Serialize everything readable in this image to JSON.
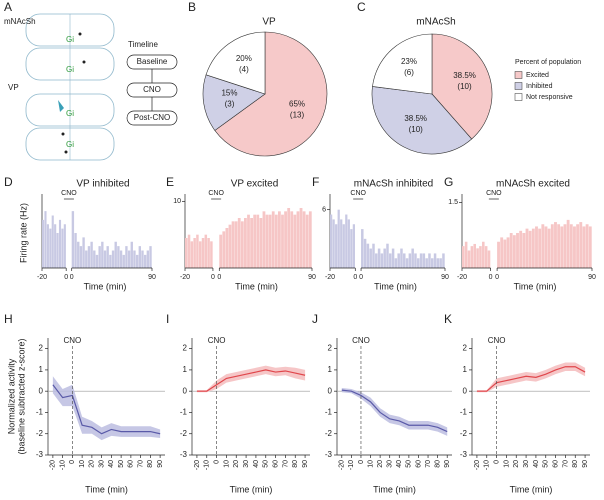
{
  "panel_labels": [
    "A",
    "B",
    "C",
    "D",
    "E",
    "F",
    "G",
    "H",
    "I",
    "J",
    "K"
  ],
  "diagram": {
    "regions": [
      "mNAcSh",
      "VP"
    ],
    "virus": "Gi",
    "timeline_title": "Timeline",
    "timeline_steps": [
      "Baseline",
      "CNO",
      "Post-CNO"
    ]
  },
  "chart_data": [
    {
      "type": "pie",
      "title": "VP",
      "values": [
        65,
        15,
        20
      ],
      "value_labels": [
        "65%",
        "15%",
        "20%"
      ],
      "counts": [
        13,
        3,
        4
      ],
      "count_labels": [
        "(13)",
        "(3)",
        "(4)"
      ],
      "colors": [
        "#f6c9c9",
        "#cfd0e6",
        "#ffffff"
      ]
    },
    {
      "type": "pie",
      "title": "mNAcSh",
      "values": [
        38.5,
        38.5,
        23
      ],
      "value_labels": [
        "38.5%",
        "38.5%",
        "23%"
      ],
      "counts": [
        10,
        10,
        6
      ],
      "count_labels": [
        "(10)",
        "(10)",
        "(6)"
      ],
      "colors": [
        "#f6c9c9",
        "#cfd0e6",
        "#ffffff"
      ],
      "legend_title": "Percent of population",
      "categories": [
        "Excited",
        "Inhibited",
        "Not responsive"
      ]
    },
    {
      "type": "histogram",
      "title": "VP inhibited",
      "annotation": "CNO",
      "ylabel": "Firing rate (Hz)",
      "xlabel": "Time (min)",
      "color": "#c8c9e3",
      "ylim": [
        0,
        8
      ],
      "segments": [
        {
          "xlim": [
            -20,
            0
          ],
          "xticks": [
            -20,
            0
          ],
          "bins": [
            -20,
            -18,
            -16,
            -14,
            -12,
            -10,
            -8,
            -6,
            -4,
            -2,
            0
          ],
          "values": [
            5.5,
            6.5,
            5.0,
            4.5,
            6.0,
            5.0,
            4.0,
            5.5,
            4.5,
            5.0
          ]
        },
        {
          "xlim": [
            0,
            90
          ],
          "xticks": [
            0,
            90
          ],
          "bins": [
            0,
            3,
            6,
            9,
            12,
            15,
            18,
            21,
            24,
            27,
            30,
            33,
            36,
            39,
            42,
            45,
            48,
            51,
            54,
            57,
            60,
            63,
            66,
            69,
            72,
            75,
            78,
            81,
            84,
            87,
            90
          ],
          "values": [
            6.5,
            4.0,
            3.0,
            2.5,
            3.5,
            2.0,
            2.5,
            3.0,
            2.0,
            1.5,
            2.5,
            3.0,
            2.0,
            2.5,
            1.5,
            2.0,
            3.0,
            2.5,
            2.0,
            1.5,
            2.5,
            2.0,
            3.0,
            2.0,
            1.5,
            2.5,
            2.0,
            1.5,
            2.0,
            2.5
          ]
        }
      ]
    },
    {
      "type": "histogram",
      "title": "VP excited",
      "annotation": "CNO",
      "xlabel": "Time (min)",
      "color": "#f6c6c6",
      "ylim": [
        0,
        10.5
      ],
      "yticks": [
        10
      ],
      "segments": [
        {
          "xlim": [
            -20,
            0
          ],
          "xticks": [
            -20,
            0
          ],
          "bins": [
            -20,
            -18,
            -16,
            -14,
            -12,
            -10,
            -8,
            -6,
            -4,
            -2,
            0
          ],
          "values": [
            4.5,
            5.0,
            4.0,
            4.5,
            5.0,
            4.0,
            4.5,
            5.0,
            4.5,
            4.0
          ]
        },
        {
          "xlim": [
            0,
            90
          ],
          "xticks": [
            0,
            90
          ],
          "bins": [
            0,
            3,
            6,
            9,
            12,
            15,
            18,
            21,
            24,
            27,
            30,
            33,
            36,
            39,
            42,
            45,
            48,
            51,
            54,
            57,
            60,
            63,
            66,
            69,
            72,
            75,
            78,
            81,
            84,
            87,
            90
          ],
          "values": [
            5.0,
            5.5,
            6.0,
            6.5,
            7.0,
            7.0,
            7.5,
            7.0,
            7.5,
            8.0,
            7.5,
            8.0,
            8.0,
            7.5,
            8.5,
            8.0,
            8.0,
            8.5,
            8.0,
            8.5,
            8.0,
            8.5,
            9.0,
            8.5,
            8.0,
            8.5,
            9.0,
            8.5,
            8.0,
            8.5
          ]
        }
      ]
    },
    {
      "type": "histogram",
      "title": "mNAcSh inhibited",
      "annotation": "CNO",
      "xlabel": "Time (min)",
      "color": "#c8c9e3",
      "ylim": [
        0,
        7.2
      ],
      "yticks": [
        6
      ],
      "segments": [
        {
          "xlim": [
            -20,
            0
          ],
          "xticks": [
            -20,
            0
          ],
          "bins": [
            -20,
            -18,
            -16,
            -14,
            -12,
            -10,
            -8,
            -6,
            -4,
            -2,
            0
          ],
          "values": [
            5.5,
            5.0,
            4.5,
            6.0,
            5.0,
            4.5,
            5.5,
            5.0,
            4.0,
            4.5
          ]
        },
        {
          "xlim": [
            0,
            90
          ],
          "xticks": [
            0,
            90
          ],
          "bins": [
            0,
            3,
            6,
            9,
            12,
            15,
            18,
            21,
            24,
            27,
            30,
            33,
            36,
            39,
            42,
            45,
            48,
            51,
            54,
            57,
            60,
            63,
            66,
            69,
            72,
            75,
            78,
            81,
            84,
            87,
            90
          ],
          "values": [
            4.0,
            3.0,
            2.5,
            2.0,
            2.5,
            1.5,
            2.0,
            1.5,
            2.0,
            2.5,
            1.5,
            2.0,
            1.0,
            1.5,
            2.0,
            1.5,
            1.0,
            1.5,
            2.0,
            1.5,
            1.0,
            1.5,
            1.5,
            1.0,
            1.5,
            1.0,
            1.5,
            1.0,
            1.0,
            1.5
          ]
        }
      ]
    },
    {
      "type": "histogram",
      "title": "mNAcSh excited",
      "annotation": "CNO",
      "xlabel": "Time (min)",
      "color": "#f6c6c6",
      "ylim": [
        0,
        1.6
      ],
      "yticks": [
        1.5
      ],
      "segments": [
        {
          "xlim": [
            -20,
            0
          ],
          "xticks": [
            -20,
            0
          ],
          "bins": [
            -20,
            -18,
            -16,
            -14,
            -12,
            -10,
            -8,
            -6,
            -4,
            -2,
            0
          ],
          "values": [
            0.5,
            0.6,
            0.4,
            0.5,
            0.55,
            0.45,
            0.5,
            0.6,
            0.5,
            0.4
          ]
        },
        {
          "xlim": [
            0,
            90
          ],
          "xticks": [
            0,
            90
          ],
          "bins": [
            0,
            3,
            6,
            9,
            12,
            15,
            18,
            21,
            24,
            27,
            30,
            33,
            36,
            39,
            42,
            45,
            48,
            51,
            54,
            57,
            60,
            63,
            66,
            69,
            72,
            75,
            78,
            81,
            84,
            87,
            90
          ],
          "values": [
            0.6,
            0.7,
            0.65,
            0.7,
            0.8,
            0.75,
            0.8,
            0.85,
            0.8,
            0.9,
            0.85,
            0.9,
            0.95,
            0.9,
            1.0,
            0.95,
            0.9,
            1.0,
            1.05,
            1.0,
            0.95,
            1.0,
            1.1,
            1.0,
            0.95,
            1.0,
            1.05,
            0.95,
            1.0,
            0.95
          ]
        }
      ]
    },
    {
      "type": "line",
      "ylabel": [
        "Normalized activity",
        "(baseline subtracted z-score)"
      ],
      "xlabel": "Time (min)",
      "annotation": {
        "text": "CNO",
        "x": 0
      },
      "color": "#5a5aa8",
      "band_color": "#bcbde0",
      "x": [
        -20,
        -10,
        0,
        10,
        20,
        30,
        40,
        50,
        60,
        70,
        80,
        90
      ],
      "values": [
        0.3,
        -0.3,
        -0.2,
        -1.6,
        -1.7,
        -2.0,
        -1.8,
        -1.9,
        -1.9,
        -1.9,
        -1.9,
        -2.0
      ],
      "errors": [
        0.4,
        0.4,
        0.5,
        0.4,
        0.3,
        0.3,
        0.3,
        0.25,
        0.25,
        0.25,
        0.25,
        0.2
      ],
      "xlim": [
        -25,
        95
      ],
      "ylim": [
        -3,
        2.5
      ],
      "xticks": [
        -20,
        -10,
        0,
        10,
        20,
        30,
        40,
        50,
        60,
        70,
        80,
        90
      ],
      "yticks": [
        -3,
        -2,
        -1,
        0,
        1,
        2
      ]
    },
    {
      "type": "line",
      "xlabel": "Time (min)",
      "annotation": {
        "text": "CNO",
        "x": 0
      },
      "color": "#e0474c",
      "band_color": "#f5bcbd",
      "x": [
        -20,
        -10,
        0,
        10,
        20,
        30,
        40,
        50,
        60,
        70,
        80,
        90
      ],
      "values": [
        0,
        0,
        0.3,
        0.6,
        0.7,
        0.8,
        0.9,
        1.0,
        0.9,
        0.95,
        0.85,
        0.75
      ],
      "errors": [
        0.05,
        0.05,
        0.2,
        0.2,
        0.2,
        0.2,
        0.2,
        0.2,
        0.2,
        0.2,
        0.25,
        0.25
      ],
      "xlim": [
        -25,
        95
      ],
      "ylim": [
        -3,
        2.5
      ],
      "xticks": [
        -20,
        -10,
        0,
        10,
        20,
        30,
        40,
        50,
        60,
        70,
        80,
        90
      ],
      "yticks": [
        -3,
        -2,
        -1,
        0,
        1,
        2
      ]
    },
    {
      "type": "line",
      "xlabel": "Time (min)",
      "annotation": {
        "text": "CNO",
        "x": 0
      },
      "color": "#5a5aa8",
      "band_color": "#bcbde0",
      "x": [
        -20,
        -10,
        0,
        10,
        20,
        30,
        40,
        50,
        60,
        70,
        80,
        90
      ],
      "values": [
        0.05,
        0,
        -0.2,
        -0.5,
        -1.0,
        -1.3,
        -1.4,
        -1.6,
        -1.6,
        -1.6,
        -1.7,
        -1.9
      ],
      "errors": [
        0.1,
        0.1,
        0.15,
        0.2,
        0.2,
        0.2,
        0.2,
        0.2,
        0.2,
        0.2,
        0.2,
        0.2
      ],
      "xlim": [
        -25,
        95
      ],
      "ylim": [
        -3,
        2.5
      ],
      "xticks": [
        -20,
        -10,
        0,
        10,
        20,
        30,
        40,
        50,
        60,
        70,
        80,
        90
      ],
      "yticks": [
        -3,
        -2,
        -1,
        0,
        1,
        2
      ]
    },
    {
      "type": "line",
      "xlabel": "Time (min)",
      "annotation": {
        "text": "CNO",
        "x": 0
      },
      "color": "#e0474c",
      "band_color": "#f5bcbd",
      "x": [
        -20,
        -10,
        0,
        10,
        20,
        30,
        40,
        50,
        60,
        70,
        80,
        90
      ],
      "values": [
        0,
        0,
        0.4,
        0.5,
        0.6,
        0.7,
        0.65,
        0.8,
        1.0,
        1.15,
        1.15,
        0.9
      ],
      "errors": [
        0.05,
        0.05,
        0.2,
        0.2,
        0.2,
        0.2,
        0.2,
        0.2,
        0.2,
        0.2,
        0.2,
        0.2
      ],
      "xlim": [
        -25,
        95
      ],
      "ylim": [
        -3,
        2.5
      ],
      "xticks": [
        -20,
        -10,
        0,
        10,
        20,
        30,
        40,
        50,
        60,
        70,
        80,
        90
      ],
      "yticks": [
        -3,
        -2,
        -1,
        0,
        1,
        2
      ]
    }
  ]
}
